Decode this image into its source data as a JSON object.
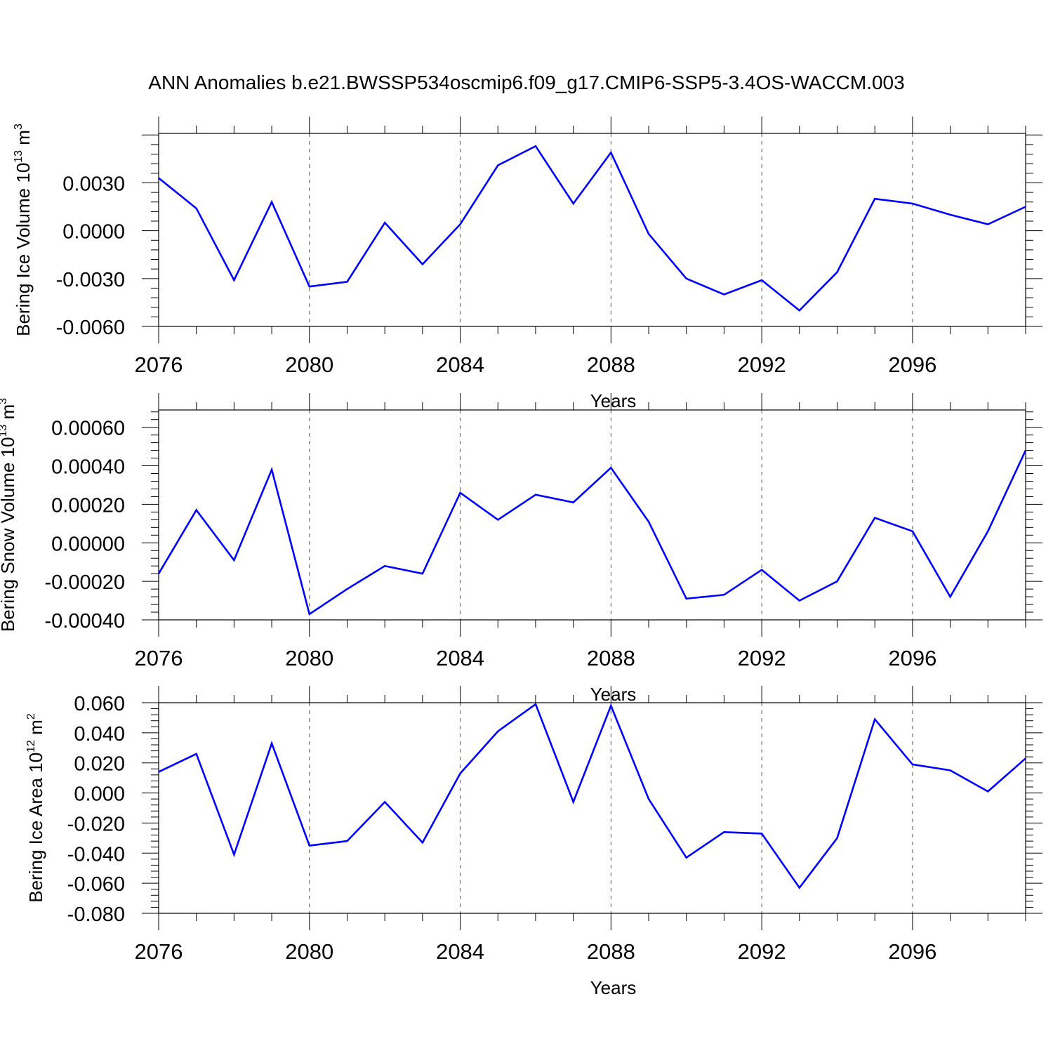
{
  "title": "ANN Anomalies b.e21.BWSSP534oscmip6.f09_g17.CMIP6-SSP5-3.4OS-WACCM.003",
  "colors": {
    "series": "#0000ff",
    "axis": "#000000",
    "grid": "#555555"
  },
  "chart_data": [
    {
      "type": "line",
      "ylabel": {
        "text": "Bering Ice Volume 10",
        "sup": "13",
        "unit": " m",
        "unit_sup": "3"
      },
      "xlabel": "Years",
      "xlim": [
        2076,
        2099
      ],
      "ylim": [
        -0.006,
        0.0061
      ],
      "x_ticks": [
        "2076",
        "2080",
        "2084",
        "2088",
        "2092",
        "2096"
      ],
      "y_ticks": [
        "0.0030",
        "0.0000",
        "-0.0030",
        "-0.0060"
      ],
      "grid": "vertical dashed at major x ticks",
      "x": [
        2076,
        2077,
        2078,
        2079,
        2080,
        2081,
        2082,
        2083,
        2084,
        2085,
        2086,
        2087,
        2088,
        2089,
        2090,
        2091,
        2092,
        2093,
        2094,
        2095,
        2096,
        2097,
        2098,
        2099
      ],
      "series": [
        {
          "values": [
            0.0033,
            0.0014,
            -0.0031,
            0.0018,
            -0.0035,
            -0.0032,
            0.0005,
            -0.0021,
            0.0004,
            0.0041,
            0.0053,
            0.0017,
            0.0049,
            -0.0002,
            -0.003,
            -0.004,
            -0.0031,
            -0.005,
            -0.0026,
            0.002,
            0.0017,
            0.001,
            0.0004,
            0.0015
          ]
        }
      ]
    },
    {
      "type": "line",
      "ylabel": {
        "text": "Bering Snow Volume 10",
        "sup": "13",
        "unit": " m",
        "unit_sup": "3"
      },
      "xlabel": "Years",
      "xlim": [
        2076,
        2099
      ],
      "ylim": [
        -0.0004,
        0.00069
      ],
      "x_ticks": [
        "2076",
        "2080",
        "2084",
        "2088",
        "2092",
        "2096"
      ],
      "y_ticks": [
        "0.00060",
        "0.00040",
        "0.00020",
        "0.00000",
        "-0.00020",
        "-0.00040"
      ],
      "grid": "vertical dashed at major x ticks",
      "x": [
        2076,
        2077,
        2078,
        2079,
        2080,
        2081,
        2082,
        2083,
        2084,
        2085,
        2086,
        2087,
        2088,
        2089,
        2090,
        2091,
        2092,
        2093,
        2094,
        2095,
        2096,
        2097,
        2098,
        2099
      ],
      "series": [
        {
          "values": [
            -0.00016,
            0.00017,
            -9e-05,
            0.00038,
            -0.00037,
            -0.00024,
            -0.00012,
            -0.00016,
            0.00026,
            0.00012,
            0.00025,
            0.00021,
            0.00039,
            0.00011,
            -0.00029,
            -0.00027,
            -0.00014,
            -0.0003,
            -0.0002,
            0.00013,
            6e-05,
            -0.00028,
            6e-05,
            0.00048
          ]
        }
      ]
    },
    {
      "type": "line",
      "ylabel": {
        "text": "Bering Ice Area 10",
        "sup": "12",
        "unit": " m",
        "unit_sup": "2"
      },
      "xlabel": "Years",
      "xlim": [
        2076,
        2099
      ],
      "ylim": [
        -0.08,
        0.06
      ],
      "x_ticks": [
        "2076",
        "2080",
        "2084",
        "2088",
        "2092",
        "2096"
      ],
      "y_ticks": [
        "0.060",
        "0.040",
        "0.020",
        "0.000",
        "-0.020",
        "-0.040",
        "-0.060",
        "-0.080"
      ],
      "grid": "vertical dashed at major x ticks",
      "x": [
        2076,
        2077,
        2078,
        2079,
        2080,
        2081,
        2082,
        2083,
        2084,
        2085,
        2086,
        2087,
        2088,
        2089,
        2090,
        2091,
        2092,
        2093,
        2094,
        2095,
        2096,
        2097,
        2098,
        2099
      ],
      "series": [
        {
          "values": [
            0.014,
            0.026,
            -0.041,
            0.033,
            -0.035,
            -0.032,
            -0.006,
            -0.033,
            0.013,
            0.041,
            0.059,
            -0.006,
            0.058,
            -0.004,
            -0.043,
            -0.026,
            -0.027,
            -0.063,
            -0.03,
            0.049,
            0.019,
            0.015,
            0.001,
            0.023
          ]
        }
      ]
    }
  ]
}
